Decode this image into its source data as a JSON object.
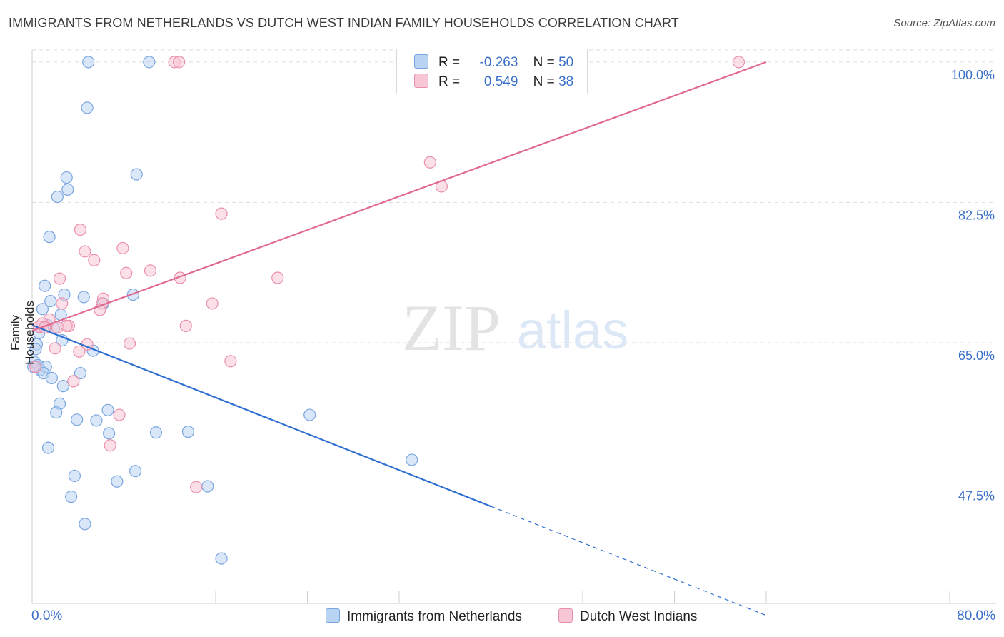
{
  "title": "IMMIGRANTS FROM NETHERLANDS VS DUTCH WEST INDIAN FAMILY HOUSEHOLDS CORRELATION CHART",
  "source": "Source: ZipAtlas.com",
  "watermark": {
    "zip": "ZIP",
    "atlas": "atlas"
  },
  "legend": {
    "r_label": "R =",
    "n_label": "N =",
    "rows": [
      {
        "r": "-0.263",
        "n": "50"
      },
      {
        "r": "0.549",
        "n": "38"
      }
    ]
  },
  "colors": {
    "blue_fill": "#b9d3f3",
    "blue_stroke": "#7aa6e0",
    "blue_line": "#2f6fd0",
    "pink_fill": "#f8c7d6",
    "pink_stroke": "#ea8fab",
    "pink_line": "#e06a92",
    "tick_label": "#3a6fc9",
    "grid": "#dedede"
  },
  "chart_data": {
    "type": "scatter",
    "title": "IMMIGRANTS FROM NETHERLANDS VS DUTCH WEST INDIAN FAMILY HOUSEHOLDS CORRELATION CHART",
    "xlabel": "",
    "ylabel": "Family Households",
    "xlim": [
      0,
      80
    ],
    "ylim": [
      32.5,
      101.5
    ],
    "x_tick_labels": [
      "0.0%",
      "80.0%"
    ],
    "y_ticks": [
      47.5,
      65.0,
      82.5,
      100.0
    ],
    "y_tick_labels": [
      "47.5%",
      "65.0%",
      "82.5%",
      "100.0%"
    ],
    "grid": true,
    "legend_position": "top-center",
    "series": [
      {
        "name": "Immigrants from Netherlands",
        "r": -0.263,
        "n": 50,
        "trend": {
          "x0": 0.0,
          "y0": 67.2,
          "x1": 40.0,
          "y1": 44.6,
          "dashed_to_x": 64.0,
          "dashed_to_y": 31.0
        },
        "points": [
          [
            4.9,
            100.0
          ],
          [
            10.2,
            100.0
          ],
          [
            4.8,
            94.3
          ],
          [
            9.1,
            86.0
          ],
          [
            3.0,
            85.6
          ],
          [
            3.1,
            84.1
          ],
          [
            2.2,
            83.2
          ],
          [
            1.5,
            78.2
          ],
          [
            1.1,
            72.1
          ],
          [
            4.5,
            70.7
          ],
          [
            2.8,
            71.0
          ],
          [
            8.8,
            71.0
          ],
          [
            1.6,
            70.2
          ],
          [
            0.9,
            69.2
          ],
          [
            6.2,
            69.9
          ],
          [
            2.5,
            68.5
          ],
          [
            1.3,
            67.2
          ],
          [
            1.9,
            66.8
          ],
          [
            0.6,
            66.2
          ],
          [
            0.4,
            64.8
          ],
          [
            0.3,
            64.2
          ],
          [
            2.6,
            65.3
          ],
          [
            5.3,
            64.0
          ],
          [
            0.2,
            62.6
          ],
          [
            0.5,
            62.2
          ],
          [
            0.7,
            61.6
          ],
          [
            1.2,
            62.0
          ],
          [
            1.0,
            61.2
          ],
          [
            4.2,
            61.2
          ],
          [
            1.7,
            60.6
          ],
          [
            2.7,
            59.6
          ],
          [
            2.4,
            57.4
          ],
          [
            2.1,
            56.3
          ],
          [
            6.6,
            56.6
          ],
          [
            3.9,
            55.4
          ],
          [
            5.6,
            55.3
          ],
          [
            6.7,
            53.7
          ],
          [
            10.8,
            53.8
          ],
          [
            13.6,
            53.9
          ],
          [
            24.2,
            56.0
          ],
          [
            1.4,
            51.9
          ],
          [
            33.1,
            50.4
          ],
          [
            9.0,
            49.0
          ],
          [
            3.7,
            48.4
          ],
          [
            7.4,
            47.7
          ],
          [
            15.3,
            47.1
          ],
          [
            3.4,
            45.8
          ],
          [
            4.6,
            42.4
          ],
          [
            16.5,
            38.1
          ],
          [
            0.1,
            62.0
          ]
        ]
      },
      {
        "name": "Dutch West Indians",
        "r": 0.549,
        "n": 38,
        "trend": {
          "x0": 0.0,
          "y0": 66.5,
          "x1": 64.0,
          "y1": 100.0
        },
        "points": [
          [
            12.4,
            100.0
          ],
          [
            12.8,
            100.0
          ],
          [
            61.6,
            100.0
          ],
          [
            34.7,
            87.5
          ],
          [
            35.7,
            84.5
          ],
          [
            16.5,
            81.1
          ],
          [
            4.2,
            79.1
          ],
          [
            7.9,
            76.8
          ],
          [
            4.6,
            76.4
          ],
          [
            5.4,
            75.3
          ],
          [
            10.3,
            74.0
          ],
          [
            8.2,
            73.7
          ],
          [
            12.9,
            73.1
          ],
          [
            21.4,
            73.1
          ],
          [
            2.4,
            73.0
          ],
          [
            6.2,
            70.5
          ],
          [
            6.1,
            69.9
          ],
          [
            2.6,
            69.9
          ],
          [
            15.7,
            69.9
          ],
          [
            5.9,
            69.1
          ],
          [
            1.5,
            67.9
          ],
          [
            0.9,
            67.4
          ],
          [
            0.6,
            67.0
          ],
          [
            1.1,
            66.9
          ],
          [
            2.2,
            66.9
          ],
          [
            3.2,
            67.1
          ],
          [
            13.4,
            67.1
          ],
          [
            3.0,
            67.1
          ],
          [
            2.0,
            64.3
          ],
          [
            8.5,
            64.9
          ],
          [
            4.8,
            64.8
          ],
          [
            4.1,
            63.9
          ],
          [
            17.3,
            62.7
          ],
          [
            0.3,
            62.0
          ],
          [
            3.6,
            60.2
          ],
          [
            7.6,
            56.0
          ],
          [
            6.8,
            52.2
          ],
          [
            14.3,
            47.0
          ]
        ]
      }
    ]
  }
}
